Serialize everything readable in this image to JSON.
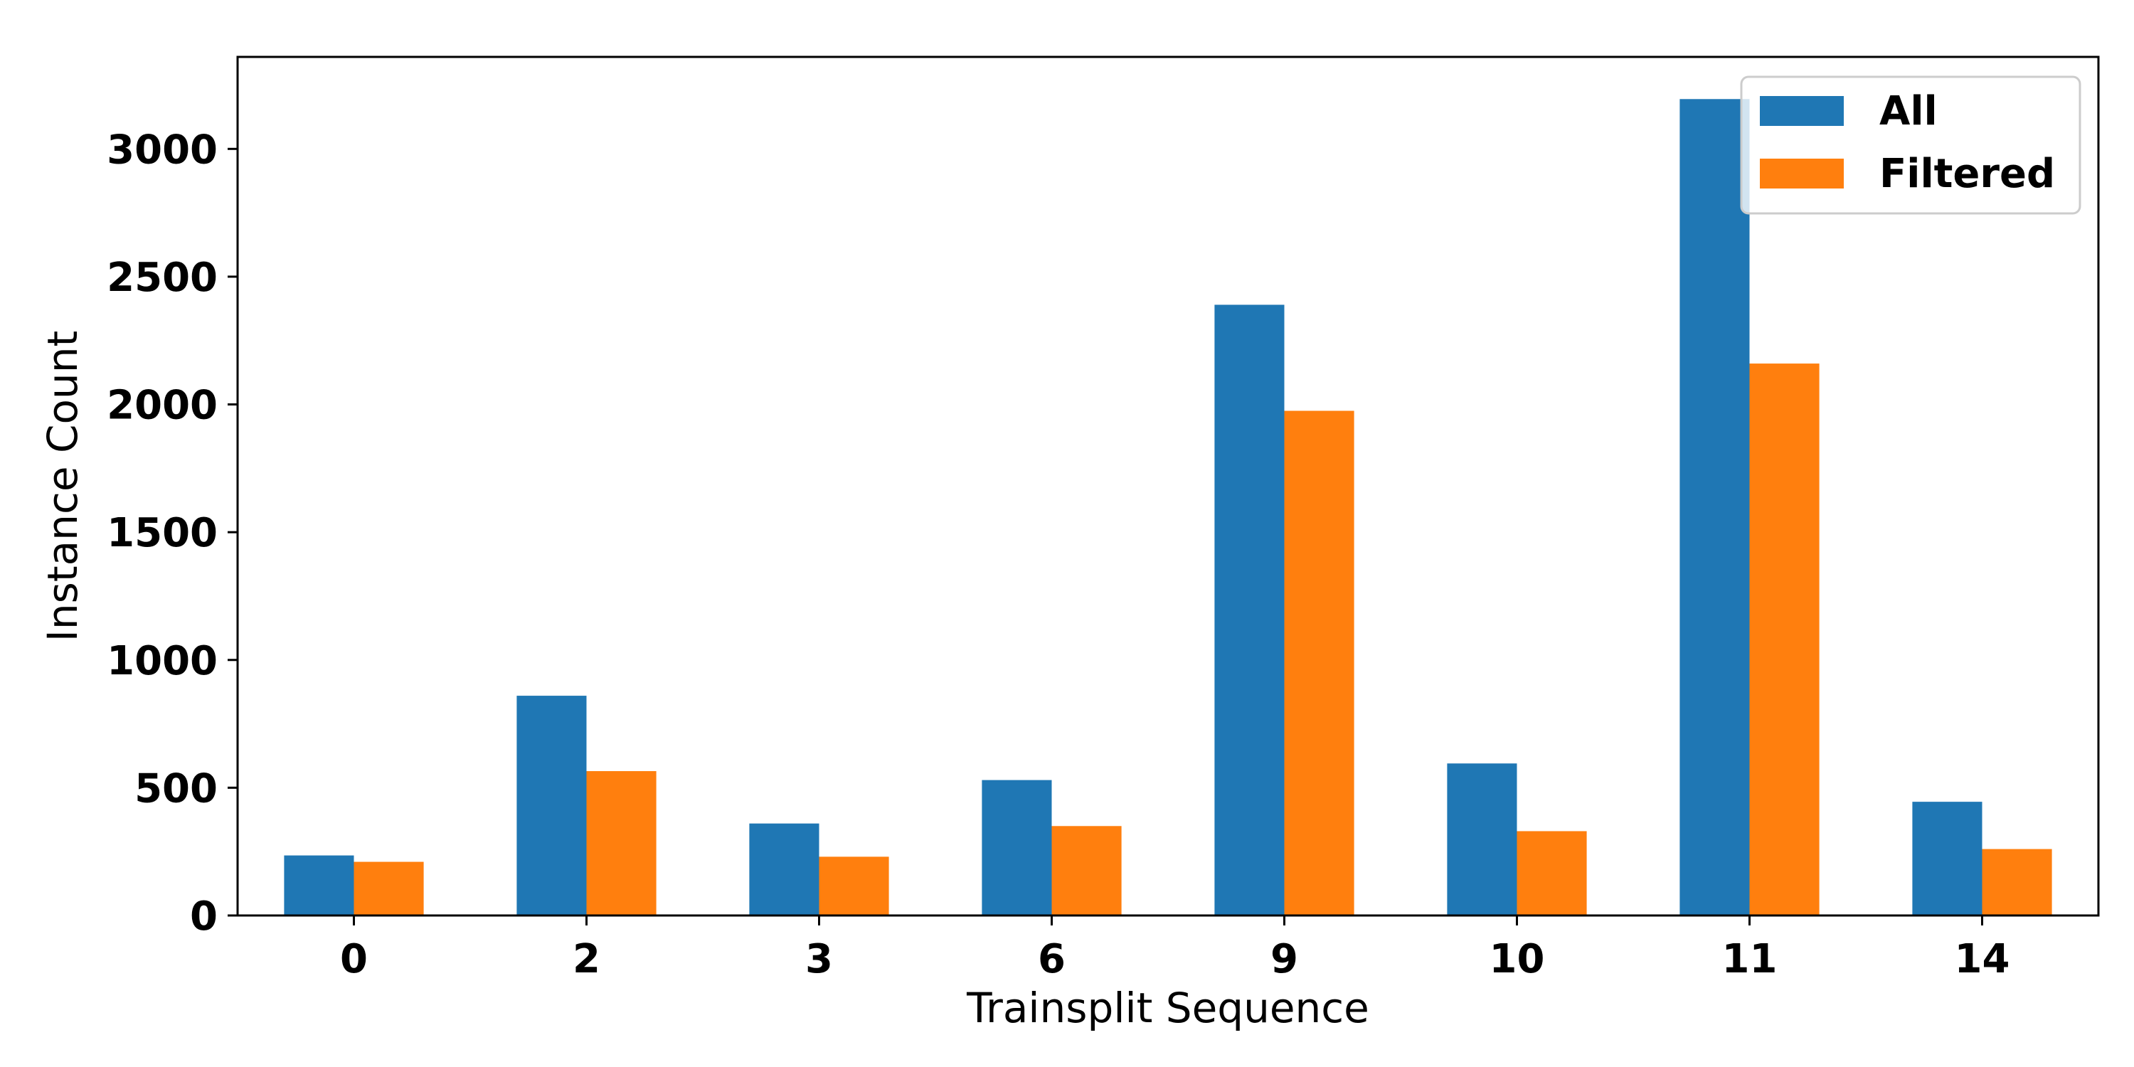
{
  "chart_data": {
    "type": "bar",
    "xlabel": "Trainsplit Sequence",
    "ylabel": "Instance Count",
    "categories": [
      "0",
      "2",
      "3",
      "6",
      "9",
      "10",
      "11",
      "14"
    ],
    "series": [
      {
        "name": "All",
        "color": "#1f77b4",
        "values": [
          235,
          860,
          360,
          530,
          2390,
          595,
          3195,
          445
        ]
      },
      {
        "name": "Filtered",
        "color": "#ff7f0e",
        "values": [
          210,
          565,
          230,
          350,
          1975,
          330,
          2160,
          260
        ]
      }
    ],
    "ylim": [
      0,
      3360
    ],
    "yticks": [
      0,
      500,
      1000,
      1500,
      2000,
      2500,
      3000
    ],
    "yticklabels": [
      "0",
      "500",
      "1000",
      "1500",
      "2000",
      "2500",
      "3000"
    ],
    "grid": false,
    "legend_position": "top-right"
  }
}
